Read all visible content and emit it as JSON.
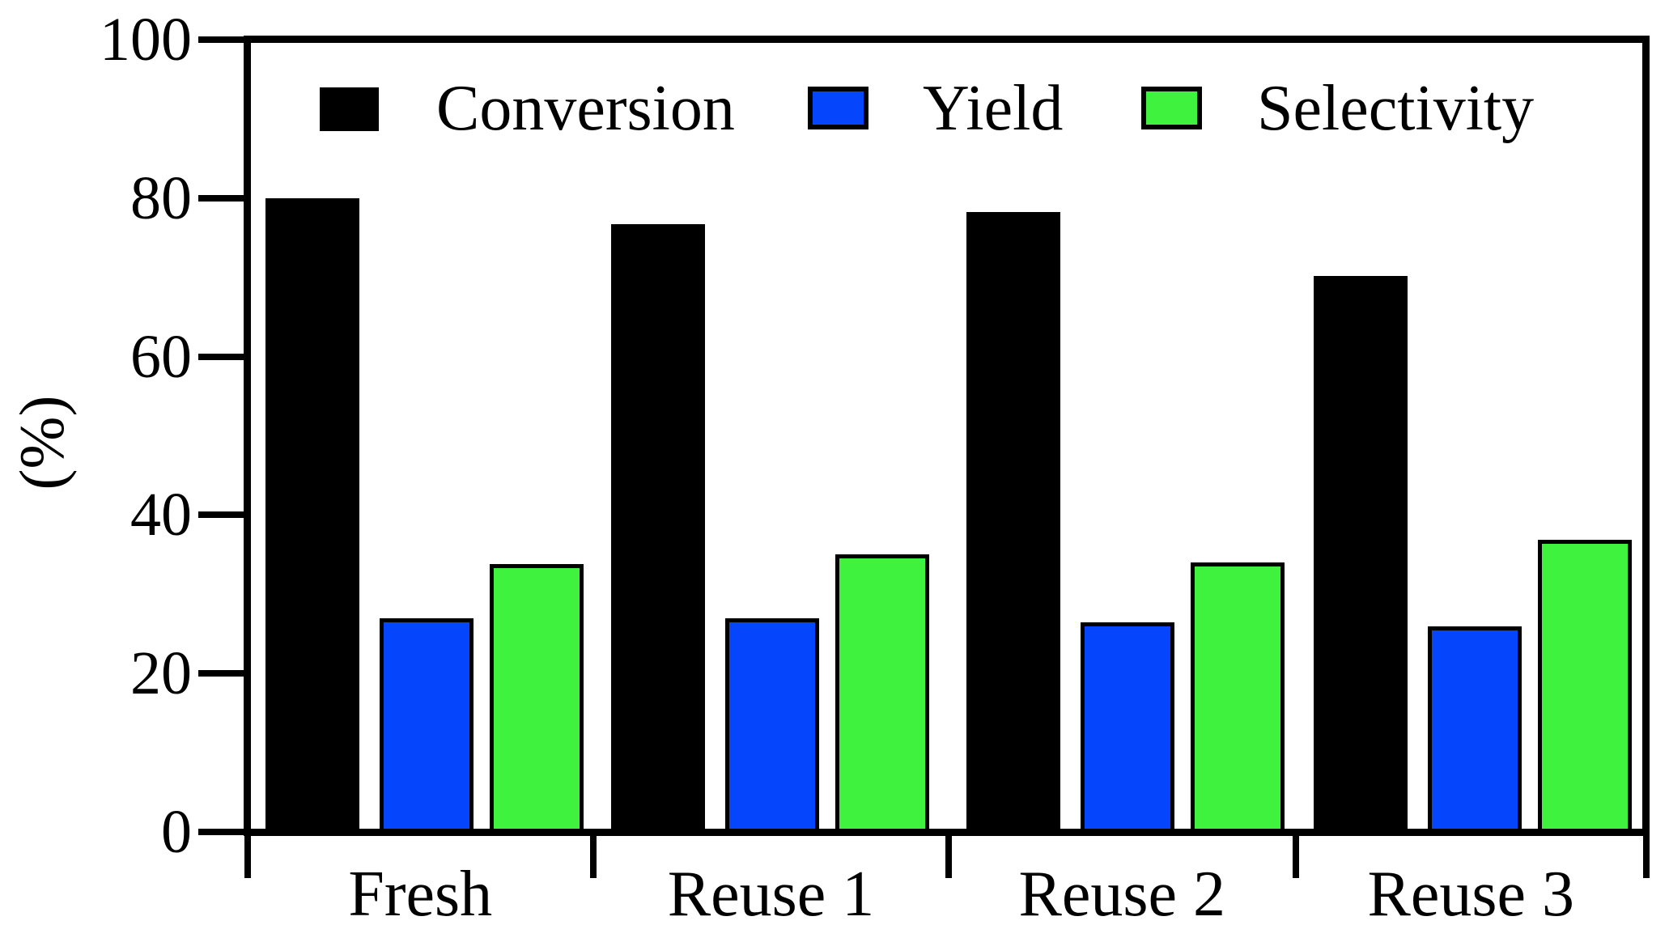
{
  "chart_data": {
    "type": "bar",
    "title": "",
    "xlabel": "",
    "ylabel": "(%)",
    "ylim": [
      0,
      100
    ],
    "yticks": [
      0,
      20,
      40,
      60,
      80,
      100
    ],
    "grid": false,
    "legend_position": "top-inside",
    "categories": [
      "Fresh",
      "Reuse 1",
      "Reuse 2",
      "Reuse 3"
    ],
    "series": [
      {
        "name": "Conversion",
        "color": "#000000",
        "stroke": "#000000",
        "values": [
          80,
          76.7,
          78.2,
          70.2
        ]
      },
      {
        "name": "Yield",
        "color": "#0545fb",
        "stroke": "#000000",
        "values": [
          27,
          27,
          26.5,
          25.9
        ]
      },
      {
        "name": "Selectivity",
        "color": "#3ef23e",
        "stroke": "#000000",
        "values": [
          33.8,
          35,
          34,
          36.9
        ]
      }
    ]
  },
  "axis": {
    "ylabel": "(%)"
  },
  "legend": {
    "conversion_label": "Conversion",
    "yield_label": "Yield",
    "selectivity_label": "Selectivity"
  }
}
